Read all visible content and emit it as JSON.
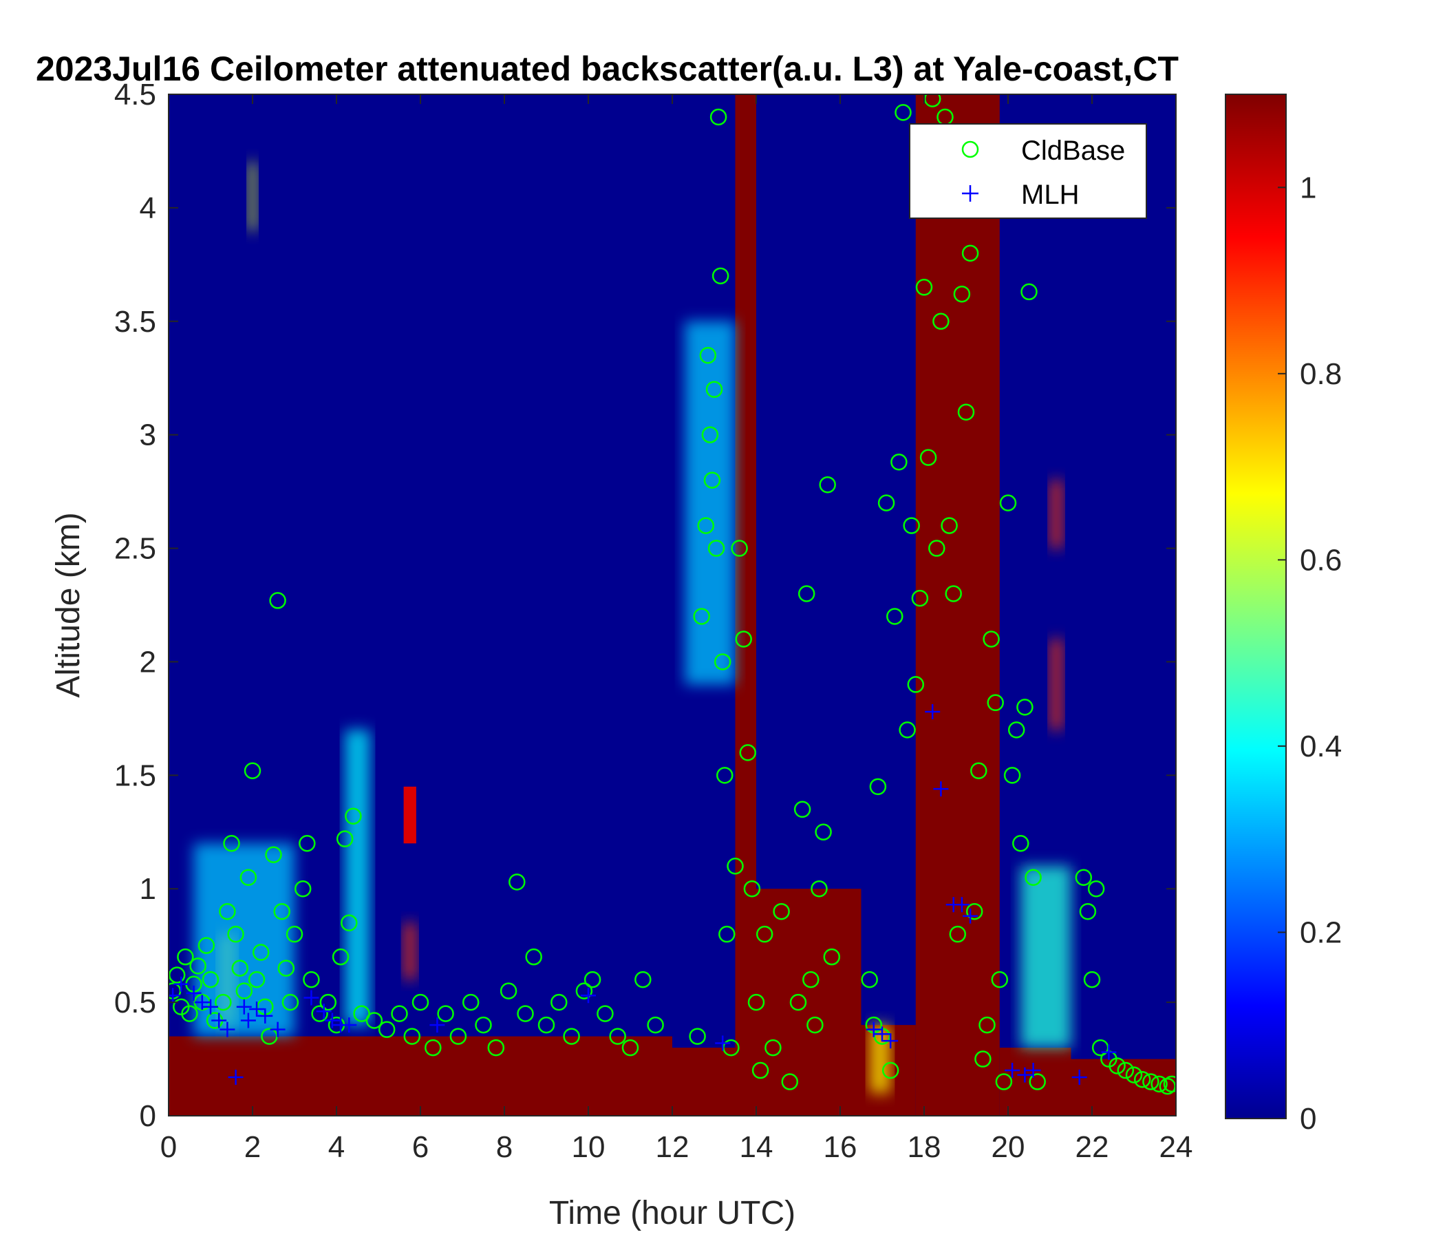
{
  "chart_data": {
    "type": "heatmap",
    "title": "2023Jul16 Ceilometer attenuated backscatter(a.u. L3) at Yale-coast,CT",
    "xlabel": "Time (hour UTC)",
    "ylabel": "Altitude (km)",
    "xlim": [
      0,
      24
    ],
    "ylim": [
      0,
      4.5
    ],
    "xticks": [
      "0",
      "2",
      "4",
      "6",
      "8",
      "10",
      "12",
      "14",
      "16",
      "18",
      "20",
      "22",
      "24"
    ],
    "yticks": [
      "0",
      "0.5",
      "1",
      "1.5",
      "2",
      "2.5",
      "3",
      "3.5",
      "4",
      "4.5"
    ],
    "colorbar": {
      "colormap": "jet",
      "range": [
        0,
        1.1
      ],
      "ticks": [
        "0",
        "0.2",
        "0.4",
        "0.6",
        "0.8",
        "1"
      ]
    },
    "legend": {
      "position": "top-right",
      "entries": [
        {
          "label": "CldBase",
          "marker": "circle",
          "color": "#00ff00"
        },
        {
          "label": "MLH",
          "marker": "plus",
          "color": "#0000ff"
        }
      ]
    },
    "regions": [
      {
        "x": [
          0,
          12
        ],
        "y": [
          0,
          0.35
        ],
        "value": 1.1
      },
      {
        "x": [
          12,
          13.5
        ],
        "y": [
          0,
          0.3
        ],
        "value": 1.1
      },
      {
        "x": [
          13.5,
          14
        ],
        "y": [
          0,
          4.5
        ],
        "value": 1.1
      },
      {
        "x": [
          14,
          16.5
        ],
        "y": [
          0,
          1.0
        ],
        "value": 1.1
      },
      {
        "x": [
          16.5,
          17.8
        ],
        "y": [
          0,
          0.4
        ],
        "value": 1.1
      },
      {
        "x": [
          17.8,
          19.8
        ],
        "y": [
          0,
          4.5
        ],
        "value": 1.1
      },
      {
        "x": [
          19.8,
          21.5
        ],
        "y": [
          0,
          0.3
        ],
        "value": 1.1
      },
      {
        "x": [
          21.5,
          24
        ],
        "y": [
          0,
          0.25
        ],
        "value": 1.1
      },
      {
        "x": [
          1.2,
          1.6
        ],
        "y": [
          0.4,
          0.8
        ],
        "value": 0.75
      },
      {
        "x": [
          0.6,
          3.0
        ],
        "y": [
          0.35,
          1.2
        ],
        "value": 0.35
      },
      {
        "x": [
          4.2,
          4.8
        ],
        "y": [
          0.4,
          1.7
        ],
        "value": 0.4
      },
      {
        "x": [
          5.6,
          5.9
        ],
        "y": [
          1.2,
          1.45
        ],
        "value": 1.0
      },
      {
        "x": [
          5.6,
          5.9
        ],
        "y": [
          0.6,
          0.85
        ],
        "value": 0.9
      },
      {
        "x": [
          20.3,
          21.5
        ],
        "y": [
          0.3,
          1.1
        ],
        "value": 0.45
      },
      {
        "x": [
          12.3,
          13.5
        ],
        "y": [
          1.9,
          3.5
        ],
        "value": 0.35
      },
      {
        "x": [
          16.7,
          17.2
        ],
        "y": [
          0.1,
          0.4
        ],
        "value": 0.7
      },
      {
        "x": [
          21.0,
          21.3
        ],
        "y": [
          1.7,
          2.1
        ],
        "value": 0.9
      },
      {
        "x": [
          21.0,
          21.3
        ],
        "y": [
          2.5,
          2.8
        ],
        "value": 0.9
      },
      {
        "x": [
          1.9,
          2.1
        ],
        "y": [
          3.9,
          4.2
        ],
        "value": 0.65
      }
    ],
    "series": [
      {
        "name": "CldBase",
        "marker": "circle",
        "points": [
          [
            0.1,
            0.55
          ],
          [
            0.2,
            0.62
          ],
          [
            0.3,
            0.48
          ],
          [
            0.4,
            0.7
          ],
          [
            0.5,
            0.45
          ],
          [
            0.6,
            0.58
          ],
          [
            0.7,
            0.66
          ],
          [
            0.8,
            0.5
          ],
          [
            0.9,
            0.75
          ],
          [
            1.0,
            0.6
          ],
          [
            1.1,
            0.42
          ],
          [
            1.3,
            0.5
          ],
          [
            1.4,
            0.9
          ],
          [
            1.5,
            1.2
          ],
          [
            1.6,
            0.8
          ],
          [
            1.7,
            0.65
          ],
          [
            1.8,
            0.55
          ],
          [
            1.9,
            1.05
          ],
          [
            2.0,
            1.52
          ],
          [
            2.1,
            0.6
          ],
          [
            2.2,
            0.72
          ],
          [
            2.3,
            0.48
          ],
          [
            2.4,
            0.35
          ],
          [
            2.5,
            1.15
          ],
          [
            2.6,
            2.27
          ],
          [
            2.7,
            0.9
          ],
          [
            2.8,
            0.65
          ],
          [
            2.9,
            0.5
          ],
          [
            3.0,
            0.8
          ],
          [
            3.2,
            1.0
          ],
          [
            3.3,
            1.2
          ],
          [
            3.4,
            0.6
          ],
          [
            3.6,
            0.45
          ],
          [
            3.8,
            0.5
          ],
          [
            4.0,
            0.4
          ],
          [
            4.1,
            0.7
          ],
          [
            4.2,
            1.22
          ],
          [
            4.3,
            0.85
          ],
          [
            4.4,
            1.32
          ],
          [
            4.6,
            0.45
          ],
          [
            4.9,
            0.42
          ],
          [
            5.2,
            0.38
          ],
          [
            5.5,
            0.45
          ],
          [
            5.8,
            0.35
          ],
          [
            6.0,
            0.5
          ],
          [
            6.3,
            0.3
          ],
          [
            6.6,
            0.45
          ],
          [
            6.9,
            0.35
          ],
          [
            7.2,
            0.5
          ],
          [
            7.5,
            0.4
          ],
          [
            7.8,
            0.3
          ],
          [
            8.1,
            0.55
          ],
          [
            8.3,
            1.03
          ],
          [
            8.5,
            0.45
          ],
          [
            8.7,
            0.7
          ],
          [
            9.0,
            0.4
          ],
          [
            9.3,
            0.5
          ],
          [
            9.6,
            0.35
          ],
          [
            9.9,
            0.55
          ],
          [
            10.1,
            0.6
          ],
          [
            10.4,
            0.45
          ],
          [
            10.7,
            0.35
          ],
          [
            11.0,
            0.3
          ],
          [
            11.3,
            0.6
          ],
          [
            11.6,
            0.4
          ],
          [
            12.6,
            0.35
          ],
          [
            12.7,
            2.2
          ],
          [
            12.8,
            2.6
          ],
          [
            12.85,
            3.35
          ],
          [
            12.9,
            3.0
          ],
          [
            12.95,
            2.8
          ],
          [
            13.0,
            3.2
          ],
          [
            13.05,
            2.5
          ],
          [
            13.1,
            4.4
          ],
          [
            13.15,
            3.7
          ],
          [
            13.2,
            2.0
          ],
          [
            13.25,
            1.5
          ],
          [
            13.3,
            0.8
          ],
          [
            13.4,
            0.3
          ],
          [
            13.5,
            1.1
          ],
          [
            13.6,
            2.5
          ],
          [
            13.7,
            2.1
          ],
          [
            13.8,
            1.6
          ],
          [
            13.9,
            1.0
          ],
          [
            14.0,
            0.5
          ],
          [
            14.1,
            0.2
          ],
          [
            14.2,
            0.8
          ],
          [
            14.4,
            0.3
          ],
          [
            14.6,
            0.9
          ],
          [
            14.8,
            0.15
          ],
          [
            15.0,
            0.5
          ],
          [
            15.1,
            1.35
          ],
          [
            15.2,
            2.3
          ],
          [
            15.3,
            0.6
          ],
          [
            15.4,
            0.4
          ],
          [
            15.5,
            1.0
          ],
          [
            15.6,
            1.25
          ],
          [
            15.7,
            2.78
          ],
          [
            15.8,
            0.7
          ],
          [
            16.7,
            0.6
          ],
          [
            16.8,
            0.4
          ],
          [
            16.9,
            1.45
          ],
          [
            17.0,
            0.35
          ],
          [
            17.1,
            2.7
          ],
          [
            17.2,
            0.2
          ],
          [
            17.3,
            2.2
          ],
          [
            17.4,
            2.88
          ],
          [
            17.5,
            4.42
          ],
          [
            17.6,
            1.7
          ],
          [
            17.7,
            2.6
          ],
          [
            17.8,
            1.9
          ],
          [
            17.9,
            2.28
          ],
          [
            18.0,
            3.65
          ],
          [
            18.1,
            2.9
          ],
          [
            18.2,
            4.48
          ],
          [
            18.3,
            2.5
          ],
          [
            18.4,
            3.5
          ],
          [
            18.5,
            4.4
          ],
          [
            18.6,
            2.6
          ],
          [
            18.7,
            2.3
          ],
          [
            18.8,
            0.8
          ],
          [
            18.9,
            3.62
          ],
          [
            19.0,
            3.1
          ],
          [
            19.1,
            3.8
          ],
          [
            19.2,
            0.9
          ],
          [
            19.3,
            1.52
          ],
          [
            19.4,
            0.25
          ],
          [
            19.5,
            0.4
          ],
          [
            19.6,
            2.1
          ],
          [
            19.7,
            1.82
          ],
          [
            19.8,
            0.6
          ],
          [
            19.9,
            0.15
          ],
          [
            20.0,
            2.7
          ],
          [
            20.1,
            1.5
          ],
          [
            20.2,
            1.7
          ],
          [
            20.3,
            1.2
          ],
          [
            20.4,
            1.8
          ],
          [
            20.5,
            3.63
          ],
          [
            20.6,
            1.05
          ],
          [
            20.7,
            0.15
          ],
          [
            21.8,
            1.05
          ],
          [
            21.9,
            0.9
          ],
          [
            22.0,
            0.6
          ],
          [
            22.1,
            1.0
          ],
          [
            22.2,
            0.3
          ],
          [
            22.4,
            0.25
          ],
          [
            22.6,
            0.22
          ],
          [
            22.8,
            0.2
          ],
          [
            23.0,
            0.18
          ],
          [
            23.2,
            0.16
          ],
          [
            23.4,
            0.15
          ],
          [
            23.6,
            0.14
          ],
          [
            23.8,
            0.13
          ],
          [
            23.9,
            0.14
          ]
        ]
      },
      {
        "name": "MLH",
        "marker": "plus",
        "points": [
          [
            0.1,
            0.53
          ],
          [
            0.3,
            0.58
          ],
          [
            0.6,
            0.54
          ],
          [
            0.8,
            0.5
          ],
          [
            1.0,
            0.48
          ],
          [
            1.2,
            0.42
          ],
          [
            1.4,
            0.38
          ],
          [
            1.6,
            0.17
          ],
          [
            1.8,
            0.48
          ],
          [
            1.9,
            0.42
          ],
          [
            2.1,
            0.47
          ],
          [
            2.3,
            0.44
          ],
          [
            2.6,
            0.38
          ],
          [
            3.4,
            0.52
          ],
          [
            3.7,
            0.46
          ],
          [
            3.9,
            0.42
          ],
          [
            4.1,
            0.4
          ],
          [
            4.3,
            0.4
          ],
          [
            6.4,
            0.4
          ],
          [
            10.0,
            0.53
          ],
          [
            13.2,
            0.32
          ],
          [
            16.8,
            0.38
          ],
          [
            17.0,
            0.36
          ],
          [
            17.2,
            0.33
          ],
          [
            18.2,
            1.78
          ],
          [
            18.4,
            1.44
          ],
          [
            18.7,
            0.93
          ],
          [
            18.9,
            0.93
          ],
          [
            19.1,
            0.88
          ],
          [
            20.1,
            0.2
          ],
          [
            20.4,
            0.18
          ],
          [
            20.6,
            0.2
          ],
          [
            21.7,
            0.17
          ],
          [
            22.4,
            0.28
          ]
        ]
      }
    ]
  }
}
